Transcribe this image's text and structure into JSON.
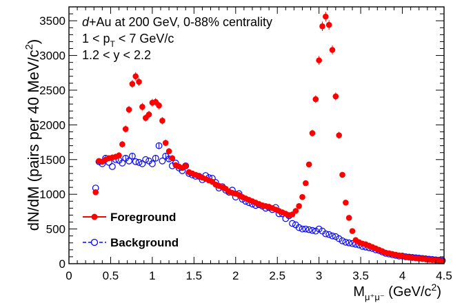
{
  "chart_data": {
    "type": "scatter",
    "title": "",
    "xlabel": "M",
    "xlabel_subscript": "μ⁺μ⁻",
    "xlabel_unit": " (GeV/c",
    "xlabel_unit_sup": "2",
    "xlabel_unit_close": ")",
    "ylabel": "dN/dM (pairs per 40 MeV/c",
    "ylabel_sup": "2",
    "ylabel_close": ")",
    "xlim": [
      0,
      4.5
    ],
    "ylim": [
      0,
      3700
    ],
    "xticks": [
      "0",
      "0.5",
      "1",
      "1.5",
      "2",
      "2.5",
      "3",
      "3.5",
      "4",
      "4.5"
    ],
    "yticks": [
      "0",
      "500",
      "1000",
      "1500",
      "2000",
      "2500",
      "3000",
      "3500"
    ],
    "grid": false,
    "legend_position": "bottom-left",
    "annotations": {
      "line1_italic": "d",
      "line1_rest": "+Au at 200 GeV, 0-88% centrality",
      "line2_pre": "1 < p",
      "line2_sub": "T",
      "line2_post": " < 7 GeV/c",
      "line3": "1.2 < y < 2.2"
    },
    "series": [
      {
        "name": "Foreground",
        "color": "#ff0000",
        "marker": "filled-circle",
        "x": [
          0.32,
          0.36,
          0.4,
          0.44,
          0.48,
          0.52,
          0.56,
          0.6,
          0.64,
          0.68,
          0.72,
          0.76,
          0.8,
          0.84,
          0.88,
          0.92,
          0.96,
          1.0,
          1.04,
          1.08,
          1.12,
          1.16,
          1.2,
          1.24,
          1.28,
          1.32,
          1.36,
          1.4,
          1.44,
          1.48,
          1.52,
          1.56,
          1.6,
          1.64,
          1.68,
          1.72,
          1.76,
          1.8,
          1.84,
          1.88,
          1.92,
          1.96,
          2.0,
          2.04,
          2.08,
          2.12,
          2.16,
          2.2,
          2.24,
          2.28,
          2.32,
          2.36,
          2.4,
          2.44,
          2.48,
          2.52,
          2.56,
          2.6,
          2.64,
          2.68,
          2.72,
          2.76,
          2.8,
          2.84,
          2.88,
          2.92,
          2.96,
          3.0,
          3.04,
          3.08,
          3.12,
          3.16,
          3.2,
          3.24,
          3.28,
          3.32,
          3.36,
          3.4,
          3.44,
          3.48,
          3.52,
          3.56,
          3.6,
          3.64,
          3.68,
          3.72,
          3.76,
          3.8,
          3.84,
          3.88,
          3.92,
          3.96,
          4.0,
          4.04,
          4.08,
          4.12,
          4.16,
          4.2,
          4.24,
          4.28,
          4.32,
          4.36,
          4.4,
          4.44,
          4.48
        ],
        "y": [
          1030,
          1480,
          1470,
          1500,
          1520,
          1530,
          1540,
          1560,
          1720,
          1940,
          2220,
          2590,
          2700,
          2620,
          2260,
          2100,
          2150,
          2320,
          2330,
          2280,
          2060,
          1740,
          1620,
          1520,
          1420,
          1400,
          1380,
          1410,
          1320,
          1300,
          1280,
          1260,
          1240,
          1220,
          1200,
          1180,
          1140,
          1120,
          1100,
          1080,
          1040,
          1020,
          1010,
          990,
          960,
          940,
          920,
          900,
          880,
          860,
          840,
          830,
          820,
          800,
          780,
          760,
          740,
          720,
          700,
          710,
          760,
          830,
          960,
          1160,
          1430,
          1880,
          2370,
          2930,
          3420,
          3560,
          3440,
          3080,
          2410,
          1850,
          1280,
          880,
          660,
          470,
          340,
          310,
          290,
          280,
          260,
          240,
          220,
          200,
          180,
          160,
          150,
          140,
          130,
          120,
          110,
          100,
          90,
          85,
          80,
          75,
          70,
          65,
          60,
          55,
          50,
          45,
          40
        ]
      },
      {
        "name": "Background",
        "color": "#0000ff",
        "marker": "open-circle",
        "x": [
          0.32,
          0.36,
          0.4,
          0.44,
          0.48,
          0.52,
          0.56,
          0.6,
          0.64,
          0.68,
          0.72,
          0.76,
          0.8,
          0.84,
          0.88,
          0.92,
          0.96,
          1.0,
          1.04,
          1.08,
          1.12,
          1.16,
          1.2,
          1.24,
          1.28,
          1.32,
          1.36,
          1.4,
          1.44,
          1.48,
          1.52,
          1.56,
          1.6,
          1.64,
          1.68,
          1.72,
          1.76,
          1.8,
          1.84,
          1.88,
          1.92,
          1.96,
          2.0,
          2.04,
          2.08,
          2.12,
          2.16,
          2.2,
          2.24,
          2.28,
          2.32,
          2.36,
          2.4,
          2.44,
          2.48,
          2.52,
          2.56,
          2.6,
          2.64,
          2.68,
          2.72,
          2.76,
          2.8,
          2.84,
          2.88,
          2.92,
          2.96,
          3.0,
          3.04,
          3.08,
          3.12,
          3.16,
          3.2,
          3.24,
          3.28,
          3.32,
          3.36,
          3.4,
          3.44,
          3.48,
          3.52,
          3.56,
          3.6,
          3.64,
          3.68,
          3.72,
          3.76,
          3.8,
          3.84,
          3.88,
          3.92,
          3.96,
          4.0,
          4.04,
          4.08,
          4.12,
          4.16,
          4.2,
          4.24,
          4.28,
          4.32,
          4.36,
          4.4,
          4.44,
          4.48
        ],
        "y": [
          1090,
          1470,
          1440,
          1520,
          1460,
          1400,
          1500,
          1490,
          1450,
          1520,
          1480,
          1550,
          1470,
          1460,
          1440,
          1500,
          1480,
          1440,
          1520,
          1700,
          1480,
          1550,
          1510,
          1410,
          1450,
          1380,
          1340,
          1410,
          1300,
          1280,
          1260,
          1260,
          1210,
          1270,
          1240,
          1230,
          1170,
          1090,
          1110,
          1060,
          1030,
          1060,
          960,
          1010,
          930,
          900,
          880,
          860,
          840,
          850,
          830,
          800,
          810,
          780,
          810,
          720,
          720,
          650,
          690,
          580,
          560,
          520,
          500,
          500,
          490,
          480,
          470,
          500,
          470,
          430,
          420,
          400,
          390,
          360,
          330,
          310,
          300,
          290,
          280,
          270,
          250,
          240,
          230,
          220,
          200,
          190,
          170,
          150,
          140,
          130,
          120,
          110,
          110,
          100,
          95,
          90,
          85,
          80,
          75,
          70,
          65,
          60,
          55,
          50,
          45
        ]
      }
    ]
  }
}
